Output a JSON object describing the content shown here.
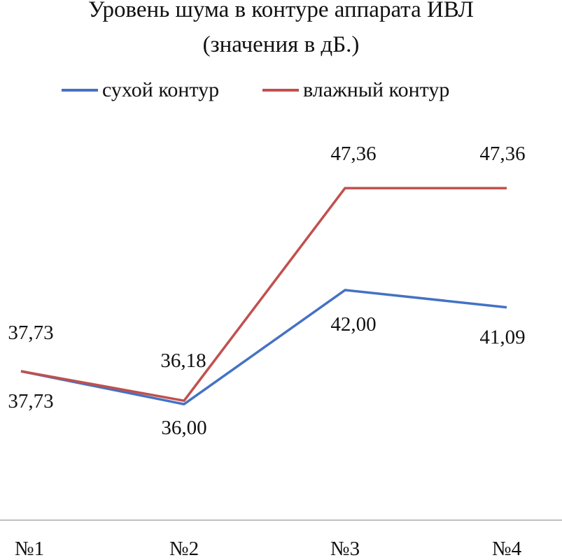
{
  "chart_data": {
    "type": "line",
    "title_line1": "Уровень шума в контуре аппарата ИВЛ",
    "title_line2": "(значения в дБ.)",
    "categories": [
      "№1",
      "№2",
      "№3",
      "№4"
    ],
    "series": [
      {
        "name": "сухой контур",
        "values": [
          37.73,
          36.0,
          42.0,
          41.09
        ],
        "labels": [
          "37,73",
          "36,00",
          "42,00",
          "41,09"
        ],
        "color": "#4472c4"
      },
      {
        "name": "влажный контур",
        "values": [
          37.73,
          36.18,
          47.36,
          47.36
        ],
        "labels": [
          "37,73",
          "36,18",
          "47,36",
          "47,36"
        ],
        "color": "#c0504d"
      }
    ],
    "ylim": [
      30,
      50
    ],
    "legend": "top",
    "grid": false
  }
}
